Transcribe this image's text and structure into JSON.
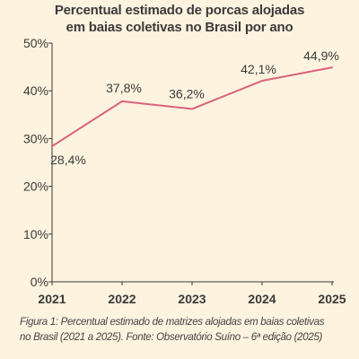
{
  "chart_data": {
    "type": "line",
    "title_lines": [
      "Percentual estimado de porcas alojadas",
      "em baias coletivas no Brasil por ano"
    ],
    "x": [
      "2021",
      "2022",
      "2023",
      "2024",
      "2025"
    ],
    "values": [
      28.4,
      37.8,
      36.2,
      42.1,
      44.9
    ],
    "data_labels": [
      "28,4%",
      "37,8%",
      "36,2%",
      "42,1%",
      "44,9%"
    ],
    "y_ticks": [
      "0%",
      "10%",
      "20%",
      "30%",
      "40%",
      "50%"
    ],
    "ylim": [
      0,
      50
    ],
    "grid": false,
    "colors": {
      "line": "#d9637a",
      "axis": "#3a3a3a",
      "background": "#fdf3df"
    }
  },
  "caption_lines": [
    "Figura 1: Percentual estimado de matrizes alojadas em baias coletivas",
    "no Brasil (2021 a 2025). Fonte: Observatório Suíno – 6ª edição (2025)"
  ]
}
